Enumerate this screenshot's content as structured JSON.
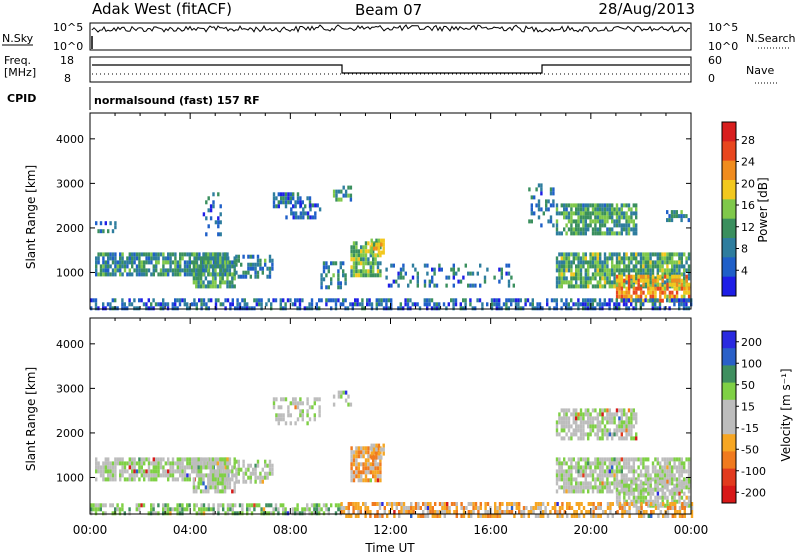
{
  "header": {
    "title": "Adak West (fitACF)",
    "beam": "Beam 07",
    "date": "28/Aug/2013"
  },
  "top_panels": {
    "nsky_label": "N.Sky",
    "nsky_ticks": [
      "10^5",
      "10^0"
    ],
    "nsearch_label": "N.Search",
    "nsearch_ticks": [
      "10^5",
      "10^0"
    ],
    "freq_label_line1": "Freq.",
    "freq_label_line2": "[MHz]",
    "freq_ticks": [
      "18",
      "8"
    ],
    "nave_label": "Nave",
    "nave_ticks": [
      "60",
      "0"
    ],
    "cpid_label": "CPID",
    "cpid_text": "normalsound (fast) 157 RF"
  },
  "colors": {
    "power_scale": [
      "#1e1ee6",
      "#1f5fc8",
      "#2e7d9e",
      "#3a8f5e",
      "#7fc84a",
      "#f2c81e",
      "#f08c1e",
      "#e8461e",
      "#d81e1e"
    ],
    "velocity_scale": [
      "#2a2ae0",
      "#2a60c8",
      "#3f8f5f",
      "#7fd045",
      "#bdbdbd",
      "#bdbdbd",
      "#f6a623",
      "#f07a1e",
      "#e23a1e",
      "#d81818"
    ]
  },
  "chart_data": [
    {
      "type": "heatmap",
      "name": "power",
      "ylabel": "Slant Range [km]",
      "yticks": [
        "1000",
        "2000",
        "3000",
        "4000"
      ],
      "ylim": [
        180,
        4580
      ],
      "xlim_hours": [
        0,
        24
      ],
      "colorbar_label": "Power [dB]",
      "colorbar_ticks": [
        "4",
        "8",
        "12",
        "16",
        "20",
        "24",
        "28"
      ],
      "colorbar_range": [
        0,
        30
      ],
      "echo_regions": [
        {
          "t0": 0.2,
          "t1": 5.5,
          "r0": 1000,
          "r1": 1450,
          "density": 0.8,
          "level": 9
        },
        {
          "t0": 4.1,
          "t1": 5.8,
          "r0": 650,
          "r1": 1450,
          "density": 0.75,
          "level": 11
        },
        {
          "t0": 5.8,
          "t1": 7.3,
          "r0": 950,
          "r1": 1400,
          "density": 0.5,
          "level": 8
        },
        {
          "t0": 0.2,
          "t1": 1.2,
          "r0": 1950,
          "r1": 2150,
          "density": 0.25,
          "level": 6
        },
        {
          "t0": 4.5,
          "t1": 5.2,
          "r0": 1900,
          "r1": 2800,
          "density": 0.35,
          "level": 6
        },
        {
          "t0": 7.3,
          "t1": 8.8,
          "r0": 2500,
          "r1": 2800,
          "density": 0.5,
          "level": 6
        },
        {
          "t0": 7.8,
          "t1": 9.2,
          "r0": 2200,
          "r1": 2550,
          "density": 0.4,
          "level": 5
        },
        {
          "t0": 9.7,
          "t1": 10.4,
          "r0": 2650,
          "r1": 2950,
          "density": 0.6,
          "level": 10
        },
        {
          "t0": 10.4,
          "t1": 11.6,
          "r0": 900,
          "r1": 1700,
          "density": 0.85,
          "level": 14
        },
        {
          "t0": 11.2,
          "t1": 11.7,
          "r0": 1450,
          "r1": 1760,
          "density": 0.8,
          "level": 17
        },
        {
          "t0": 9.2,
          "t1": 10.2,
          "r0": 700,
          "r1": 1250,
          "density": 0.4,
          "level": 8
        },
        {
          "t0": 11.7,
          "t1": 16.9,
          "r0": 700,
          "r1": 1200,
          "density": 0.25,
          "level": 6
        },
        {
          "t0": 17.5,
          "t1": 18.5,
          "r0": 2100,
          "r1": 3000,
          "density": 0.35,
          "level": 6
        },
        {
          "t0": 18.6,
          "t1": 21.8,
          "r0": 1900,
          "r1": 2550,
          "density": 0.8,
          "level": 11
        },
        {
          "t0": 18.6,
          "t1": 23.9,
          "r0": 650,
          "r1": 1450,
          "density": 0.85,
          "level": 12
        },
        {
          "t0": 21.0,
          "t1": 23.9,
          "r0": 400,
          "r1": 950,
          "density": 0.7,
          "level": 22
        },
        {
          "t0": 23.0,
          "t1": 23.9,
          "r0": 2200,
          "r1": 2400,
          "density": 0.6,
          "level": 8
        },
        {
          "t0": 0.0,
          "t1": 24.0,
          "r0": 180,
          "r1": 420,
          "density": 0.55,
          "level": 5
        }
      ]
    },
    {
      "type": "heatmap",
      "name": "velocity",
      "ylabel": "Slant Range [km]",
      "yticks": [
        "1000",
        "2000",
        "3000",
        "4000"
      ],
      "ylim": [
        180,
        4580
      ],
      "xlim_hours": [
        0,
        24
      ],
      "xticks": [
        "00:00",
        "04:00",
        "08:00",
        "12:00",
        "16:00",
        "20:00",
        "00:00"
      ],
      "xlabel": "Time UT",
      "colorbar_label": "Velocity [m s⁻¹]",
      "colorbar_ticks": [
        "200",
        "100",
        "50",
        "15",
        "-15",
        "-50",
        "-100",
        "-200"
      ],
      "echo_regions": [
        {
          "t0": 0.2,
          "t1": 5.5,
          "r0": 1000,
          "r1": 1450,
          "density": 0.8,
          "level": 4
        },
        {
          "t0": 4.1,
          "t1": 5.8,
          "r0": 650,
          "r1": 1450,
          "density": 0.75,
          "level": 4
        },
        {
          "t0": 5.8,
          "t1": 7.3,
          "r0": 950,
          "r1": 1400,
          "density": 0.5,
          "level": 4
        },
        {
          "t0": 7.3,
          "t1": 9.2,
          "r0": 2200,
          "r1": 2800,
          "density": 0.45,
          "level": 4
        },
        {
          "t0": 9.7,
          "t1": 10.4,
          "r0": 2650,
          "r1": 2950,
          "density": 0.6,
          "level": 4
        },
        {
          "t0": 10.4,
          "t1": 11.6,
          "r0": 900,
          "r1": 1700,
          "density": 0.85,
          "level": 6
        },
        {
          "t0": 11.2,
          "t1": 11.7,
          "r0": 1450,
          "r1": 1760,
          "density": 0.8,
          "level": 6
        },
        {
          "t0": 18.6,
          "t1": 21.8,
          "r0": 1900,
          "r1": 2550,
          "density": 0.75,
          "level": 4
        },
        {
          "t0": 18.6,
          "t1": 23.9,
          "r0": 650,
          "r1": 1450,
          "density": 0.8,
          "level": 4
        },
        {
          "t0": 21.0,
          "t1": 23.9,
          "r0": 400,
          "r1": 950,
          "density": 0.65,
          "level": 4
        },
        {
          "t0": 0.0,
          "t1": 10.0,
          "r0": 180,
          "r1": 420,
          "density": 0.55,
          "level": 3
        },
        {
          "t0": 10.0,
          "t1": 24.0,
          "r0": 180,
          "r1": 450,
          "density": 0.6,
          "level": 6
        }
      ]
    }
  ]
}
